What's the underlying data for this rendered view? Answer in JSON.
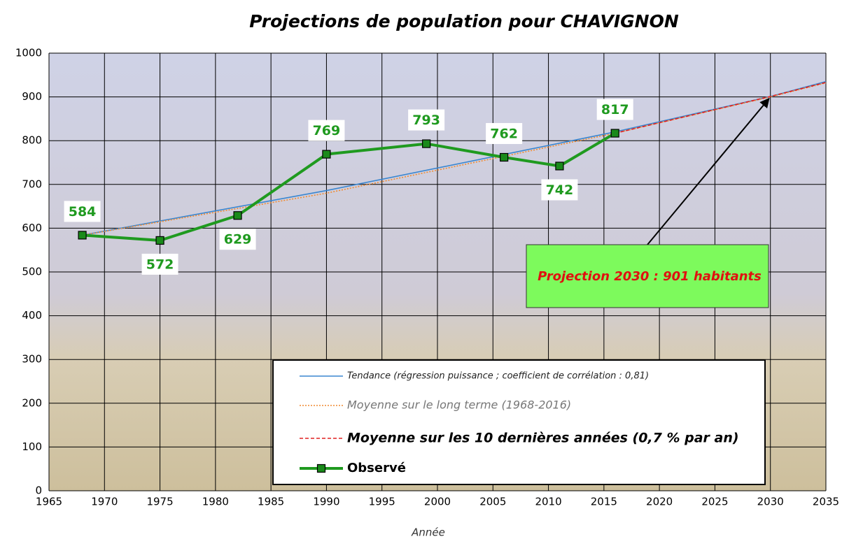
{
  "chart_data": {
    "type": "line",
    "title": "Projections de population pour CHAVIGNON",
    "x_label": "Année",
    "xlim": [
      1965,
      2035
    ],
    "xticks": [
      1965,
      1970,
      1975,
      1980,
      1985,
      1990,
      1995,
      2000,
      2005,
      2010,
      2015,
      2020,
      2025,
      2030,
      2035
    ],
    "ylim": [
      0,
      1000
    ],
    "yticks": [
      0,
      100,
      200,
      300,
      400,
      500,
      600,
      700,
      800,
      900,
      1000
    ],
    "grid": true,
    "series": [
      {
        "name": "Tendance (régression puissance ; coefficient de corrélation : 0,81)",
        "color": "#3a86d0",
        "line_style": "solid",
        "x": [
          1968,
          1990,
          2016,
          2030,
          2035
        ],
        "values": [
          584,
          686,
          820,
          901,
          935
        ]
      },
      {
        "name": "Moyenne sur le long terme (1968-2016)",
        "color": "#f08a30",
        "line_style": "dotted",
        "x": [
          1968,
          1990,
          2016,
          2030,
          2035
        ],
        "values": [
          584,
          680,
          817,
          900,
          932
        ]
      },
      {
        "name": "Moyenne sur les 10 dernières années (0,7 % par an)",
        "color": "#e02020",
        "line_style": "dashed",
        "x": [
          2016,
          2030,
          2035
        ],
        "values": [
          817,
          901,
          933
        ]
      },
      {
        "name": "Observé",
        "color": "#1f9a1f",
        "line_style": "solid",
        "marker": "square",
        "x": [
          1968,
          1975,
          1982,
          1990,
          1999,
          2006,
          2011,
          2016
        ],
        "values": [
          584,
          572,
          629,
          769,
          793,
          762,
          742,
          817
        ]
      }
    ],
    "annotation": "Projection 2030 : 901 habitants"
  }
}
